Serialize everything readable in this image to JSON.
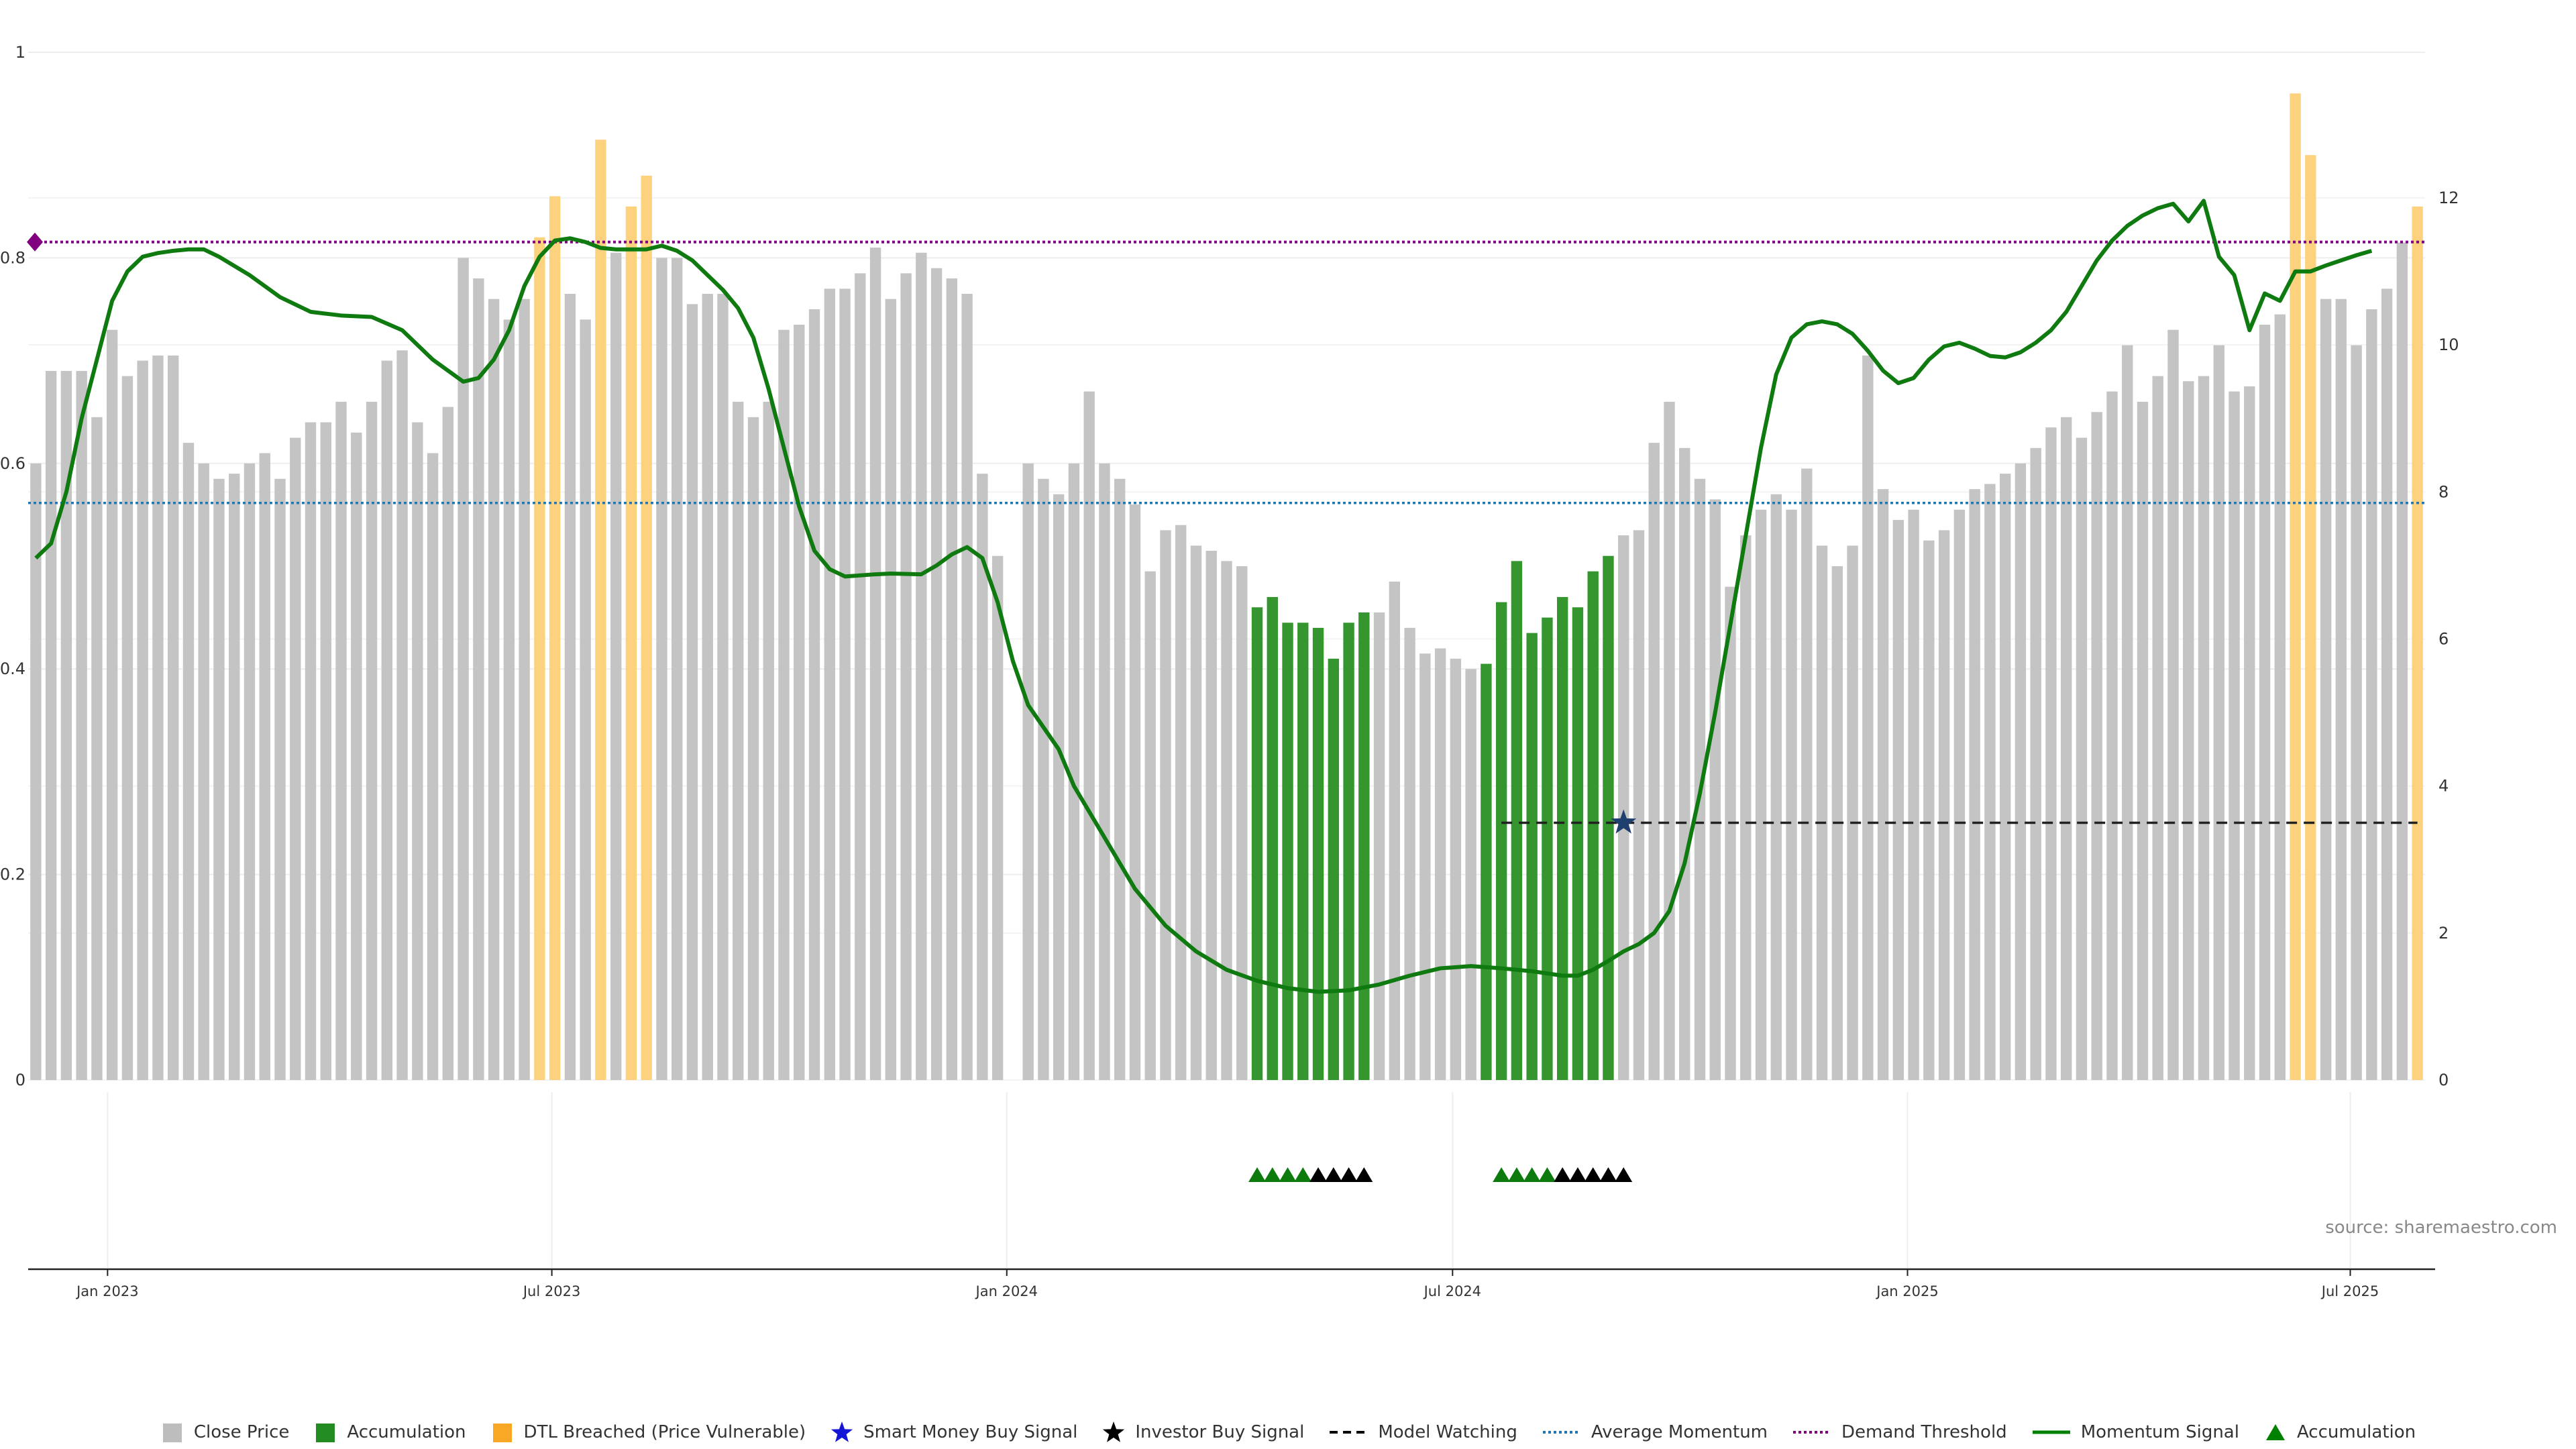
{
  "source": "source: sharemaestro.com",
  "legend": [
    {
      "label": "Close Price",
      "kind": "square",
      "color": "#bdbdbd"
    },
    {
      "label": "Accumulation",
      "kind": "square",
      "color": "#228b22"
    },
    {
      "label": "DTL Breached (Price Vulnerable)",
      "kind": "square",
      "color": "#f9a825"
    },
    {
      "label": "Smart Money Buy Signal",
      "kind": "star",
      "color": "#1515d8"
    },
    {
      "label": "Investor Buy Signal",
      "kind": "star",
      "color": "#000000"
    },
    {
      "label": "Model Watching",
      "kind": "dash",
      "color": "#000000"
    },
    {
      "label": "Average Momentum",
      "kind": "dot",
      "color": "#1f77b4"
    },
    {
      "label": "Demand Threshold",
      "kind": "dot",
      "color": "#800080"
    },
    {
      "label": "Momentum Signal",
      "kind": "line",
      "color": "#008000"
    },
    {
      "label": "Accumulation",
      "kind": "triangle",
      "color": "#008000"
    }
  ],
  "chart_data": {
    "type": "bar",
    "x_ticks": [
      "Jan 2023",
      "Jul 2023",
      "Jan 2024",
      "Jul 2024",
      "Jan 2025",
      "Jul 2025"
    ],
    "left_axis": {
      "ticks": [
        "0",
        "0.2",
        "0.4",
        "0.6",
        "0.8",
        "1"
      ],
      "ylim": [
        0,
        1
      ]
    },
    "right_axis": {
      "ticks": [
        "0",
        "2",
        "4",
        "6",
        "8",
        "10",
        "12"
      ],
      "ylim": [
        0,
        14
      ]
    },
    "bar_color_codes": {
      "g": "Close Price",
      "a": "Accumulation",
      "y": "DTL Breached (Price Vulnerable)",
      "n": "none"
    },
    "bars": [
      [
        0.6,
        "g"
      ],
      [
        0.69,
        "g"
      ],
      [
        0.69,
        "g"
      ],
      [
        0.69,
        "g"
      ],
      [
        0.645,
        "g"
      ],
      [
        0.73,
        "g"
      ],
      [
        0.685,
        "g"
      ],
      [
        0.7,
        "g"
      ],
      [
        0.705,
        "g"
      ],
      [
        0.705,
        "g"
      ],
      [
        0.62,
        "g"
      ],
      [
        0.6,
        "g"
      ],
      [
        0.585,
        "g"
      ],
      [
        0.59,
        "g"
      ],
      [
        0.6,
        "g"
      ],
      [
        0.61,
        "g"
      ],
      [
        0.585,
        "g"
      ],
      [
        0.625,
        "g"
      ],
      [
        0.64,
        "g"
      ],
      [
        0.64,
        "g"
      ],
      [
        0.66,
        "g"
      ],
      [
        0.63,
        "g"
      ],
      [
        0.66,
        "g"
      ],
      [
        0.7,
        "g"
      ],
      [
        0.71,
        "g"
      ],
      [
        0.64,
        "g"
      ],
      [
        0.61,
        "g"
      ],
      [
        0.655,
        "g"
      ],
      [
        0.8,
        "g"
      ],
      [
        0.78,
        "g"
      ],
      [
        0.76,
        "g"
      ],
      [
        0.74,
        "g"
      ],
      [
        0.76,
        "g"
      ],
      [
        0.82,
        "y"
      ],
      [
        0.86,
        "y"
      ],
      [
        0.765,
        "g"
      ],
      [
        0.74,
        "g"
      ],
      [
        0.915,
        "y"
      ],
      [
        0.805,
        "g"
      ],
      [
        0.85,
        "y"
      ],
      [
        0.88,
        "y"
      ],
      [
        0.8,
        "g"
      ],
      [
        0.8,
        "g"
      ],
      [
        0.755,
        "g"
      ],
      [
        0.765,
        "g"
      ],
      [
        0.765,
        "g"
      ],
      [
        0.66,
        "g"
      ],
      [
        0.645,
        "g"
      ],
      [
        0.66,
        "g"
      ],
      [
        0.73,
        "g"
      ],
      [
        0.735,
        "g"
      ],
      [
        0.75,
        "g"
      ],
      [
        0.77,
        "g"
      ],
      [
        0.77,
        "g"
      ],
      [
        0.785,
        "g"
      ],
      [
        0.81,
        "g"
      ],
      [
        0.76,
        "g"
      ],
      [
        0.785,
        "g"
      ],
      [
        0.805,
        "g"
      ],
      [
        0.79,
        "g"
      ],
      [
        0.78,
        "g"
      ],
      [
        0.765,
        "g"
      ],
      [
        0.59,
        "g"
      ],
      [
        0.51,
        "g"
      ],
      [
        0.0,
        "n"
      ],
      [
        0.6,
        "g"
      ],
      [
        0.585,
        "g"
      ],
      [
        0.57,
        "g"
      ],
      [
        0.6,
        "g"
      ],
      [
        0.67,
        "g"
      ],
      [
        0.6,
        "g"
      ],
      [
        0.585,
        "g"
      ],
      [
        0.56,
        "g"
      ],
      [
        0.495,
        "g"
      ],
      [
        0.535,
        "g"
      ],
      [
        0.54,
        "g"
      ],
      [
        0.52,
        "g"
      ],
      [
        0.515,
        "g"
      ],
      [
        0.505,
        "g"
      ],
      [
        0.5,
        "g"
      ],
      [
        0.46,
        "a"
      ],
      [
        0.47,
        "a"
      ],
      [
        0.445,
        "a"
      ],
      [
        0.445,
        "a"
      ],
      [
        0.44,
        "a"
      ],
      [
        0.41,
        "a"
      ],
      [
        0.445,
        "a"
      ],
      [
        0.455,
        "a"
      ],
      [
        0.455,
        "g"
      ],
      [
        0.485,
        "g"
      ],
      [
        0.44,
        "g"
      ],
      [
        0.415,
        "g"
      ],
      [
        0.42,
        "g"
      ],
      [
        0.41,
        "g"
      ],
      [
        0.4,
        "g"
      ],
      [
        0.405,
        "a"
      ],
      [
        0.465,
        "a"
      ],
      [
        0.505,
        "a"
      ],
      [
        0.435,
        "a"
      ],
      [
        0.45,
        "a"
      ],
      [
        0.47,
        "a"
      ],
      [
        0.46,
        "a"
      ],
      [
        0.495,
        "a"
      ],
      [
        0.51,
        "a"
      ],
      [
        0.53,
        "g"
      ],
      [
        0.535,
        "g"
      ],
      [
        0.62,
        "g"
      ],
      [
        0.66,
        "g"
      ],
      [
        0.615,
        "g"
      ],
      [
        0.585,
        "g"
      ],
      [
        0.565,
        "g"
      ],
      [
        0.48,
        "g"
      ],
      [
        0.53,
        "g"
      ],
      [
        0.555,
        "g"
      ],
      [
        0.57,
        "g"
      ],
      [
        0.555,
        "g"
      ],
      [
        0.595,
        "g"
      ],
      [
        0.52,
        "g"
      ],
      [
        0.5,
        "g"
      ],
      [
        0.52,
        "g"
      ],
      [
        0.705,
        "g"
      ],
      [
        0.575,
        "g"
      ],
      [
        0.545,
        "g"
      ],
      [
        0.555,
        "g"
      ],
      [
        0.525,
        "g"
      ],
      [
        0.535,
        "g"
      ],
      [
        0.555,
        "g"
      ],
      [
        0.575,
        "g"
      ],
      [
        0.58,
        "g"
      ],
      [
        0.59,
        "g"
      ],
      [
        0.6,
        "g"
      ],
      [
        0.615,
        "g"
      ],
      [
        0.635,
        "g"
      ],
      [
        0.645,
        "g"
      ],
      [
        0.625,
        "g"
      ],
      [
        0.65,
        "g"
      ],
      [
        0.67,
        "g"
      ],
      [
        0.715,
        "g"
      ],
      [
        0.66,
        "g"
      ],
      [
        0.685,
        "g"
      ],
      [
        0.73,
        "g"
      ],
      [
        0.68,
        "g"
      ],
      [
        0.685,
        "g"
      ],
      [
        0.715,
        "g"
      ],
      [
        0.67,
        "g"
      ],
      [
        0.675,
        "g"
      ],
      [
        0.735,
        "g"
      ],
      [
        0.745,
        "g"
      ],
      [
        0.96,
        "y"
      ],
      [
        0.9,
        "y"
      ],
      [
        0.76,
        "g"
      ],
      [
        0.76,
        "g"
      ],
      [
        0.715,
        "g"
      ],
      [
        0.75,
        "g"
      ],
      [
        0.77,
        "g"
      ],
      [
        0.815,
        "g"
      ],
      [
        0.85,
        "y"
      ]
    ],
    "momentum_signal": [
      [
        0,
        7.1
      ],
      [
        1,
        7.3
      ],
      [
        2,
        8.0
      ],
      [
        3,
        9.0
      ],
      [
        4,
        9.8
      ],
      [
        5,
        10.6
      ],
      [
        6,
        11.0
      ],
      [
        7,
        11.2
      ],
      [
        8,
        11.25
      ],
      [
        9,
        11.28
      ],
      [
        10,
        11.3
      ],
      [
        11,
        11.3
      ],
      [
        12,
        11.2
      ],
      [
        14,
        10.95
      ],
      [
        16,
        10.65
      ],
      [
        18,
        10.45
      ],
      [
        20,
        10.4
      ],
      [
        22,
        10.38
      ],
      [
        24,
        10.2
      ],
      [
        26,
        9.8
      ],
      [
        28,
        9.5
      ],
      [
        29,
        9.55
      ],
      [
        30,
        9.8
      ],
      [
        31,
        10.2
      ],
      [
        32,
        10.8
      ],
      [
        33,
        11.2
      ],
      [
        34,
        11.42
      ],
      [
        35,
        11.45
      ],
      [
        36,
        11.4
      ],
      [
        37,
        11.32
      ],
      [
        38,
        11.3
      ],
      [
        40,
        11.3
      ],
      [
        41,
        11.35
      ],
      [
        42,
        11.28
      ],
      [
        43,
        11.15
      ],
      [
        44,
        10.95
      ],
      [
        45,
        10.75
      ],
      [
        46,
        10.5
      ],
      [
        47,
        10.1
      ],
      [
        48,
        9.4
      ],
      [
        49,
        8.6
      ],
      [
        50,
        7.8
      ],
      [
        51,
        7.2
      ],
      [
        52,
        6.95
      ],
      [
        53,
        6.85
      ],
      [
        55,
        6.88
      ],
      [
        56,
        6.89
      ],
      [
        58,
        6.88
      ],
      [
        59,
        7.0
      ],
      [
        60,
        7.15
      ],
      [
        61,
        7.25
      ],
      [
        62,
        7.1
      ],
      [
        63,
        6.5
      ],
      [
        64,
        5.7
      ],
      [
        65,
        5.1
      ],
      [
        66,
        4.8
      ],
      [
        67,
        4.5
      ],
      [
        68,
        4.0
      ],
      [
        70,
        3.3
      ],
      [
        72,
        2.6
      ],
      [
        74,
        2.1
      ],
      [
        76,
        1.75
      ],
      [
        78,
        1.5
      ],
      [
        80,
        1.35
      ],
      [
        82,
        1.25
      ],
      [
        84,
        1.2
      ],
      [
        86,
        1.22
      ],
      [
        88,
        1.3
      ],
      [
        90,
        1.42
      ],
      [
        92,
        1.52
      ],
      [
        94,
        1.55
      ],
      [
        96,
        1.52
      ],
      [
        98,
        1.48
      ],
      [
        100,
        1.42
      ],
      [
        101,
        1.42
      ],
      [
        102,
        1.5
      ],
      [
        103,
        1.62
      ],
      [
        104,
        1.75
      ],
      [
        105,
        1.85
      ],
      [
        106,
        2.0
      ],
      [
        107,
        2.3
      ],
      [
        108,
        2.95
      ],
      [
        109,
        3.9
      ],
      [
        110,
        5.0
      ],
      [
        111,
        6.2
      ],
      [
        112,
        7.4
      ],
      [
        113,
        8.6
      ],
      [
        114,
        9.6
      ],
      [
        115,
        10.1
      ],
      [
        116,
        10.28
      ],
      [
        117,
        10.32
      ],
      [
        118,
        10.28
      ],
      [
        119,
        10.15
      ],
      [
        120,
        9.92
      ],
      [
        121,
        9.65
      ],
      [
        122,
        9.48
      ],
      [
        123,
        9.55
      ],
      [
        124,
        9.8
      ],
      [
        125,
        9.98
      ],
      [
        126,
        10.03
      ],
      [
        127,
        9.95
      ],
      [
        128,
        9.85
      ],
      [
        129,
        9.83
      ],
      [
        130,
        9.9
      ],
      [
        131,
        10.03
      ],
      [
        132,
        10.2
      ],
      [
        133,
        10.45
      ],
      [
        134,
        10.8
      ],
      [
        135,
        11.15
      ],
      [
        136,
        11.42
      ],
      [
        137,
        11.62
      ],
      [
        138,
        11.76
      ],
      [
        139,
        11.86
      ],
      [
        140,
        11.92
      ],
      [
        141,
        11.68
      ],
      [
        142,
        11.96
      ],
      [
        143,
        11.2
      ],
      [
        144,
        10.95
      ],
      [
        145,
        10.2
      ],
      [
        146,
        10.7
      ],
      [
        147,
        10.6
      ],
      [
        148,
        11.0
      ],
      [
        149,
        11.0
      ],
      [
        150,
        11.08
      ],
      [
        151,
        11.15
      ],
      [
        152,
        11.22
      ],
      [
        153,
        11.28
      ]
    ],
    "average_momentum": 7.85,
    "demand_threshold": 11.4,
    "model_watching": {
      "value": 3.5,
      "from": 96,
      "to": 157
    },
    "signal_star": {
      "index": 104,
      "value": 3.5
    },
    "accumulation_markers": [
      [
        80,
        "green"
      ],
      [
        81,
        "green"
      ],
      [
        82,
        "green"
      ],
      [
        83,
        "green"
      ],
      [
        84,
        "black"
      ],
      [
        85,
        "black"
      ],
      [
        86,
        "black"
      ],
      [
        87,
        "black"
      ],
      [
        96,
        "green"
      ],
      [
        97,
        "green"
      ],
      [
        98,
        "green"
      ],
      [
        99,
        "green"
      ],
      [
        100,
        "black"
      ],
      [
        101,
        "black"
      ],
      [
        102,
        "black"
      ],
      [
        103,
        "black"
      ],
      [
        104,
        "black"
      ]
    ]
  }
}
